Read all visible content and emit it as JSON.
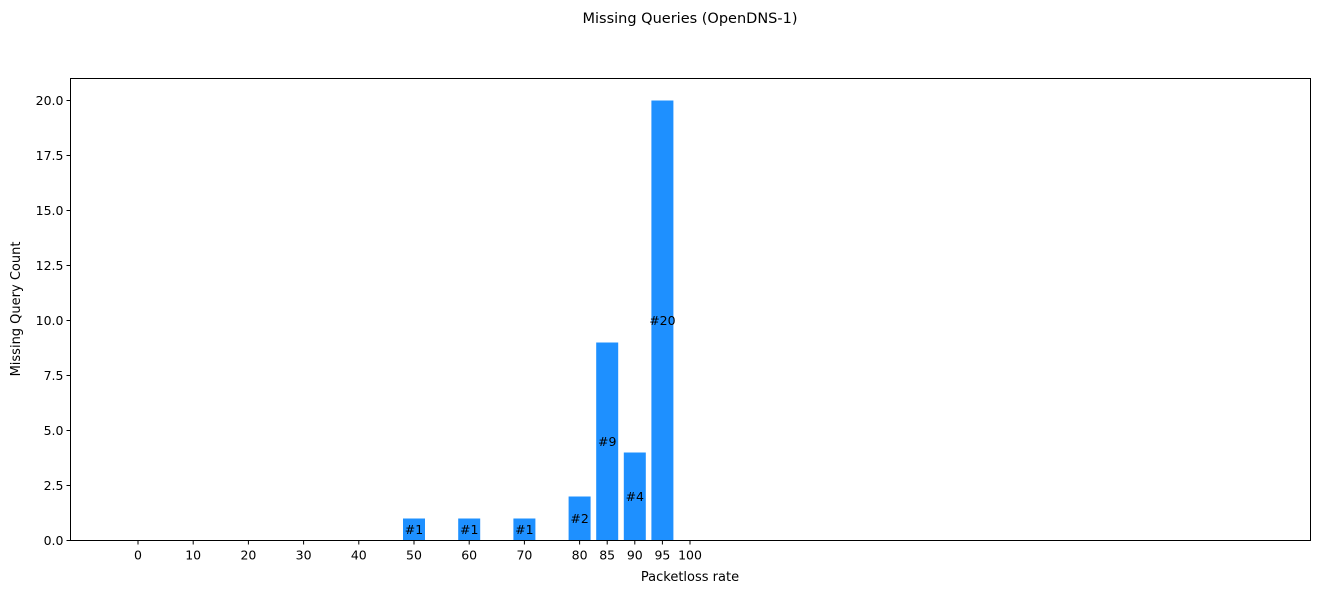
{
  "chart_data": {
    "type": "bar",
    "title": "Missing Queries (OpenDNS-1)",
    "xlabel": "Packetloss rate",
    "ylabel": "Missing Query Count",
    "x_ticks": [
      "0",
      "10",
      "20",
      "30",
      "40",
      "50",
      "60",
      "70",
      "80",
      "85",
      "90",
      "95",
      "100"
    ],
    "y_ticks": [
      "0.0",
      "2.5",
      "5.0",
      "7.5",
      "10.0",
      "12.5",
      "15.0",
      "17.5",
      "20.0"
    ],
    "y_tick_values": [
      0,
      2.5,
      5,
      7.5,
      10,
      12.5,
      15,
      17.5,
      20
    ],
    "ylim": [
      0,
      21
    ],
    "bar_color": "#1e90ff",
    "bars": [
      {
        "x": "50",
        "value": 1,
        "label": "#1"
      },
      {
        "x": "60",
        "value": 1,
        "label": "#1"
      },
      {
        "x": "70",
        "value": 1,
        "label": "#1"
      },
      {
        "x": "80",
        "value": 2,
        "label": "#2"
      },
      {
        "x": "85",
        "value": 9,
        "label": "#9"
      },
      {
        "x": "90",
        "value": 4,
        "label": "#4"
      },
      {
        "x": "95",
        "value": 20,
        "label": "#20"
      }
    ],
    "grid": false,
    "legend": "none"
  }
}
